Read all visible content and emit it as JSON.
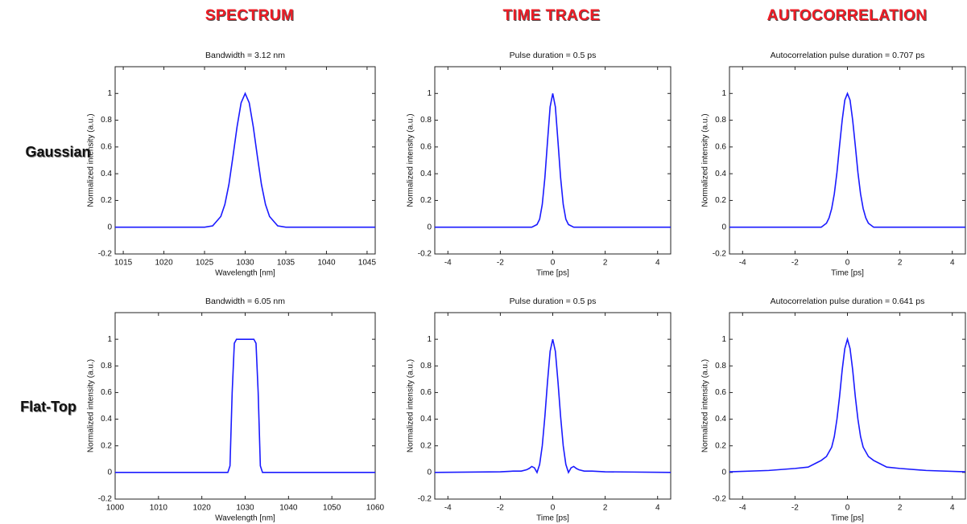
{
  "column_headers": [
    "SPECTRUM",
    "TIME TRACE",
    "AUTOCORRELATION"
  ],
  "row_labels": [
    "Gaussian",
    "Flat-Top"
  ],
  "chart_data": [
    {
      "type": "line",
      "title": "Bandwidth = 3.12 nm",
      "x_label": "Wavelength [nm]",
      "y_label": "Normalized intensity (a.u.)",
      "x": [
        1014,
        1020,
        1025,
        1026,
        1027,
        1027.5,
        1028,
        1028.5,
        1029,
        1029.5,
        1030,
        1030.5,
        1031,
        1031.5,
        1032,
        1032.5,
        1033,
        1034,
        1035,
        1040,
        1046
      ],
      "values": [
        0,
        0,
        0,
        0.01,
        0.08,
        0.17,
        0.32,
        0.53,
        0.75,
        0.93,
        1,
        0.93,
        0.75,
        0.53,
        0.32,
        0.17,
        0.08,
        0.01,
        0,
        0,
        0
      ],
      "color": "#1a1aff",
      "xlim": [
        1014,
        1046
      ],
      "xticks": [
        1015,
        1020,
        1025,
        1030,
        1035,
        1040,
        1045
      ],
      "ylim": [
        -0.2,
        1.2
      ],
      "yticks": [
        -0.2,
        0,
        0.2,
        0.4,
        0.6,
        0.8,
        1
      ]
    },
    {
      "type": "line",
      "title": "Pulse duration = 0.5 ps",
      "x_label": "Time [ps]",
      "y_label": "Normalized intensity (a.u.)",
      "x": [
        -4.5,
        -1,
        -0.8,
        -0.6,
        -0.5,
        -0.4,
        -0.3,
        -0.2,
        -0.1,
        0,
        0.1,
        0.2,
        0.3,
        0.4,
        0.5,
        0.6,
        0.8,
        1,
        4.5
      ],
      "values": [
        0,
        0,
        0,
        0.02,
        0.06,
        0.17,
        0.37,
        0.64,
        0.9,
        1,
        0.9,
        0.64,
        0.37,
        0.17,
        0.06,
        0.02,
        0,
        0,
        0
      ],
      "color": "#1a1aff",
      "xlim": [
        -4.5,
        4.5
      ],
      "xticks": [
        -4,
        -2,
        0,
        2,
        4
      ],
      "ylim": [
        -0.2,
        1.2
      ],
      "yticks": [
        -0.2,
        0,
        0.2,
        0.4,
        0.6,
        0.8,
        1
      ]
    },
    {
      "type": "line",
      "title": "Autocorrelation pulse duration = 0.707 ps",
      "x_label": "Time [ps]",
      "y_label": "Normalized intensity (a.u.)",
      "x": [
        -4.5,
        -1,
        -0.8,
        -0.7,
        -0.6,
        -0.5,
        -0.4,
        -0.3,
        -0.2,
        -0.1,
        0,
        0.1,
        0.2,
        0.3,
        0.4,
        0.5,
        0.6,
        0.7,
        0.8,
        1,
        4.5
      ],
      "values": [
        0,
        0,
        0.03,
        0.07,
        0.14,
        0.25,
        0.41,
        0.61,
        0.8,
        0.95,
        1,
        0.95,
        0.8,
        0.61,
        0.41,
        0.25,
        0.14,
        0.07,
        0.03,
        0,
        0
      ],
      "color": "#1a1aff",
      "xlim": [
        -4.5,
        4.5
      ],
      "xticks": [
        -4,
        -2,
        0,
        2,
        4
      ],
      "ylim": [
        -0.2,
        1.2
      ],
      "yticks": [
        -0.2,
        0,
        0.2,
        0.4,
        0.6,
        0.8,
        1
      ]
    },
    {
      "type": "line",
      "title": "Bandwidth = 6.05 nm",
      "x_label": "Wavelength [nm]",
      "y_label": "Normalized intensity (a.u.)",
      "x": [
        1000,
        1026,
        1026.5,
        1027,
        1027.5,
        1028,
        1032,
        1032.5,
        1033,
        1033.5,
        1034,
        1060
      ],
      "values": [
        0,
        0,
        0.05,
        0.6,
        0.97,
        1,
        1,
        0.97,
        0.6,
        0.05,
        0,
        0
      ],
      "color": "#1a1aff",
      "xlim": [
        1000,
        1060
      ],
      "xticks": [
        1000,
        1010,
        1020,
        1030,
        1040,
        1050,
        1060
      ],
      "ylim": [
        -0.2,
        1.2
      ],
      "yticks": [
        -0.2,
        0,
        0.2,
        0.4,
        0.6,
        0.8,
        1
      ]
    },
    {
      "type": "line",
      "title": "Pulse duration = 0.5 ps",
      "x_label": "Time [ps]",
      "y_label": "Normalized intensity (a.u.)",
      "x": [
        -4.5,
        -2,
        -1.5,
        -1.2,
        -1,
        -0.9,
        -0.8,
        -0.7,
        -0.6,
        -0.5,
        -0.4,
        -0.3,
        -0.2,
        -0.1,
        0,
        0.1,
        0.2,
        0.3,
        0.4,
        0.5,
        0.6,
        0.7,
        0.8,
        0.9,
        1,
        1.2,
        1.5,
        2,
        4.5
      ],
      "values": [
        0,
        0.005,
        0.01,
        0.01,
        0.02,
        0.03,
        0.045,
        0.035,
        0,
        0.06,
        0.2,
        0.42,
        0.68,
        0.91,
        1,
        0.91,
        0.68,
        0.42,
        0.2,
        0.06,
        0,
        0.035,
        0.045,
        0.03,
        0.02,
        0.01,
        0.01,
        0.005,
        0
      ],
      "color": "#1a1aff",
      "xlim": [
        -4.5,
        4.5
      ],
      "xticks": [
        -4,
        -2,
        0,
        2,
        4
      ],
      "ylim": [
        -0.2,
        1.2
      ],
      "yticks": [
        -0.2,
        0,
        0.2,
        0.4,
        0.6,
        0.8,
        1
      ]
    },
    {
      "type": "line",
      "title": "Autocorrelation pulse duration = 0.641 ps",
      "x_label": "Time [ps]",
      "y_label": "Normalized intensity (a.u.)",
      "x": [
        -4.5,
        -3,
        -2,
        -1.5,
        -1.2,
        -1,
        -0.8,
        -0.6,
        -0.5,
        -0.4,
        -0.3,
        -0.2,
        -0.1,
        0,
        0.1,
        0.2,
        0.3,
        0.4,
        0.5,
        0.6,
        0.8,
        1,
        1.2,
        1.5,
        2,
        3,
        4.5
      ],
      "values": [
        0.005,
        0.015,
        0.03,
        0.04,
        0.07,
        0.09,
        0.12,
        0.19,
        0.27,
        0.4,
        0.57,
        0.77,
        0.93,
        1,
        0.93,
        0.77,
        0.57,
        0.4,
        0.27,
        0.19,
        0.12,
        0.09,
        0.07,
        0.04,
        0.03,
        0.015,
        0.005
      ],
      "color": "#1a1aff",
      "xlim": [
        -4.5,
        4.5
      ],
      "xticks": [
        -4,
        -2,
        0,
        2,
        4
      ],
      "ylim": [
        -0.2,
        1.2
      ],
      "yticks": [
        -0.2,
        0,
        0.2,
        0.4,
        0.6,
        0.8,
        1
      ]
    }
  ]
}
